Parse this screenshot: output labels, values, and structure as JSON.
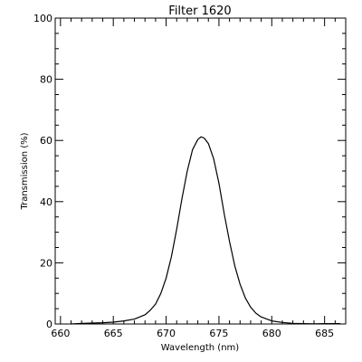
{
  "chart_data": {
    "type": "line",
    "title": "Filter  1620",
    "xlabel": "Wavelength (nm)",
    "ylabel": "Transmission (%)",
    "xlim": [
      659.5,
      687
    ],
    "ylim": [
      0,
      100
    ],
    "xticks": [
      660,
      665,
      670,
      675,
      680,
      685
    ],
    "yticks": [
      0,
      20,
      40,
      60,
      80,
      100
    ],
    "x_minor_step": 1,
    "y_minor_step": 5,
    "grid": false,
    "series": [
      {
        "color": "#000000",
        "x": [
          661.0,
          662.0,
          663.0,
          664.0,
          665.0,
          666.0,
          667.0,
          668.0,
          668.5,
          669.0,
          669.5,
          670.0,
          670.5,
          671.0,
          671.5,
          672.0,
          672.5,
          673.0,
          673.3,
          673.6,
          674.0,
          674.5,
          675.0,
          675.5,
          676.0,
          676.5,
          677.0,
          677.5,
          678.0,
          678.5,
          679.0,
          680.0,
          681.0,
          682.0,
          683.0,
          684.0,
          685.0,
          686.0,
          686.5
        ],
        "values": [
          0.0,
          0.2,
          0.3,
          0.4,
          0.6,
          1.0,
          1.6,
          3.0,
          4.5,
          6.5,
          10.0,
          15.0,
          22.0,
          31.0,
          41.0,
          50.0,
          57.0,
          60.3,
          61.2,
          60.8,
          59.0,
          54.0,
          46.0,
          36.0,
          27.0,
          19.0,
          13.0,
          8.5,
          5.5,
          3.5,
          2.3,
          1.0,
          0.5,
          0.2,
          0.1,
          0.05,
          0.1,
          0.1,
          0.1
        ]
      }
    ]
  }
}
